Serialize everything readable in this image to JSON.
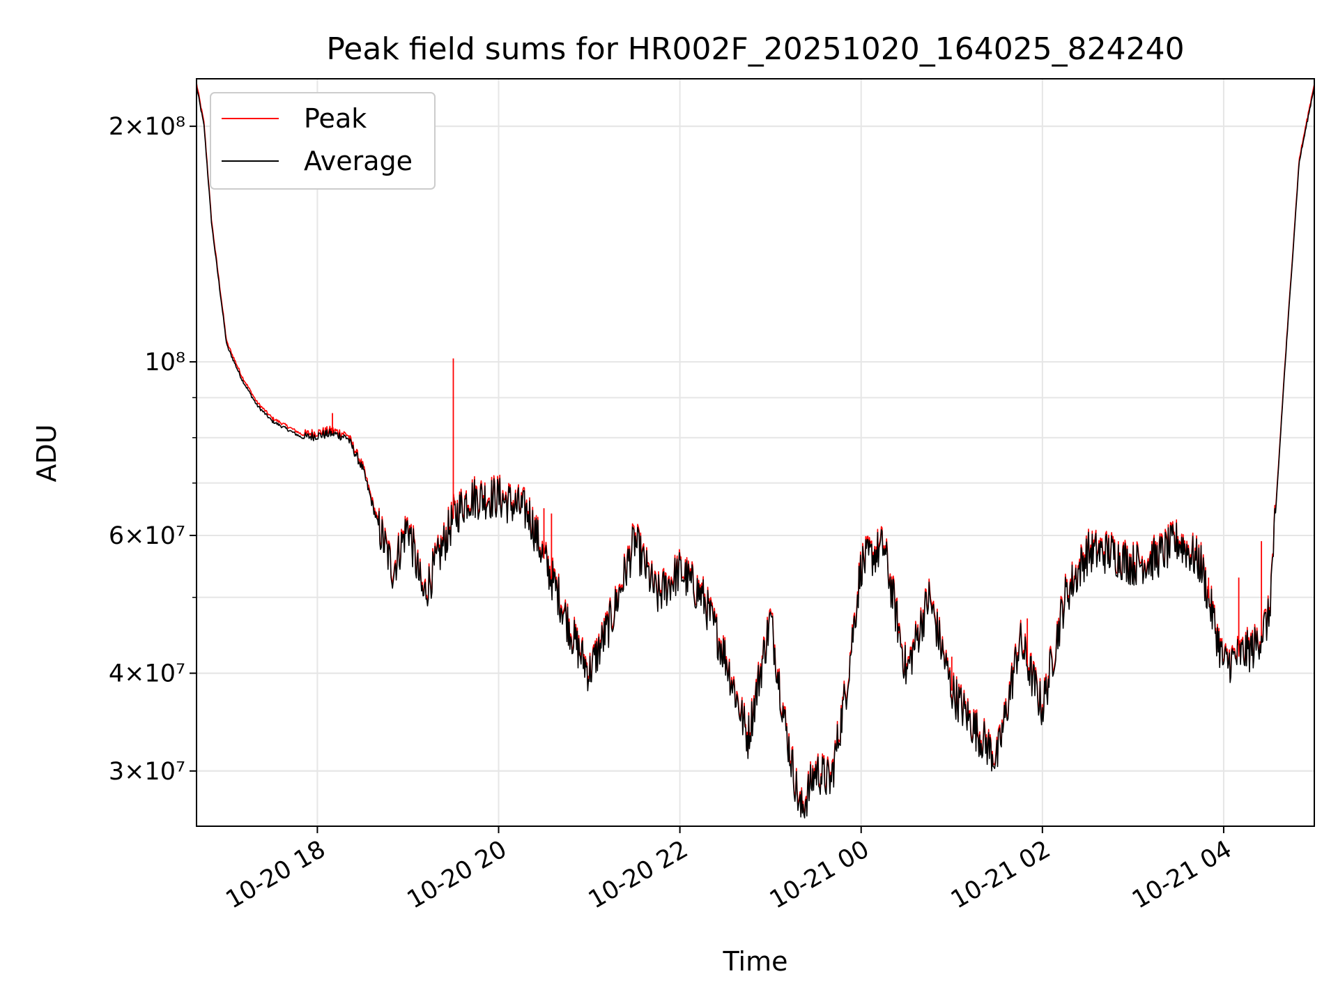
{
  "chart_data": {
    "type": "line",
    "title": "Peak field sums for HR002F_20251020_164025_824240",
    "xlabel": "Time",
    "ylabel": "ADU",
    "yscale": "log",
    "grid": true,
    "legend_position": "top-left",
    "xlim": [
      "2025-10-20 16:40",
      "2025-10-21 05:00"
    ],
    "ylim": [
      25500000,
      230000000
    ],
    "x_ticks": [
      "10-20 18",
      "10-20 20",
      "10-20 22",
      "10-21 00",
      "10-21 02",
      "10-21 04"
    ],
    "y_ticks": [
      {
        "value": 30000000,
        "label": "3×10⁷"
      },
      {
        "value": 40000000,
        "label": "4×10⁷"
      },
      {
        "value": 60000000,
        "label": "6×10⁷"
      },
      {
        "value": 100000000,
        "label": "10⁸"
      },
      {
        "value": 200000000,
        "label": "2×10⁸"
      }
    ],
    "series_colors": {
      "peak": "#ff0000",
      "average": "#000000"
    },
    "series": [
      {
        "name": "Peak",
        "color": "#ff0000",
        "x": [
          "2025-10-20 18:10",
          "2025-10-20 19:30",
          "2025-10-20 20:30",
          "2025-10-20 20:35",
          "2025-10-21 00:25",
          "2025-10-21 01:00",
          "2025-10-21 01:50",
          "2025-10-21 03:50",
          "2025-10-21 04:10",
          "2025-10-21 04:25"
        ],
        "values": [
          86000000,
          101000000,
          65000000,
          64000000,
          45000000,
          42000000,
          47000000,
          53000000,
          53000000,
          59000000
        ]
      },
      {
        "name": "Average",
        "color": "#000000",
        "x": [
          "2025-10-20 16:40",
          "2025-10-20 16:45",
          "2025-10-20 16:50",
          "2025-10-20 17:00",
          "2025-10-20 17:10",
          "2025-10-20 17:20",
          "2025-10-20 17:30",
          "2025-10-20 17:40",
          "2025-10-20 17:50",
          "2025-10-20 18:00",
          "2025-10-20 18:10",
          "2025-10-20 18:20",
          "2025-10-20 18:30",
          "2025-10-20 18:40",
          "2025-10-20 18:50",
          "2025-10-20 19:00",
          "2025-10-20 19:10",
          "2025-10-20 19:20",
          "2025-10-20 19:30",
          "2025-10-20 19:40",
          "2025-10-20 20:00",
          "2025-10-20 20:20",
          "2025-10-20 20:30",
          "2025-10-20 20:40",
          "2025-10-20 20:50",
          "2025-10-20 21:00",
          "2025-10-20 21:15",
          "2025-10-20 21:30",
          "2025-10-20 21:45",
          "2025-10-20 22:00",
          "2025-10-20 22:15",
          "2025-10-20 22:30",
          "2025-10-20 22:45",
          "2025-10-20 23:00",
          "2025-10-20 23:10",
          "2025-10-20 23:20",
          "2025-10-20 23:30",
          "2025-10-20 23:40",
          "2025-10-20 23:50",
          "2025-10-21 00:00",
          "2025-10-21 00:15",
          "2025-10-21 00:30",
          "2025-10-21 00:45",
          "2025-10-21 01:00",
          "2025-10-21 01:15",
          "2025-10-21 01:30",
          "2025-10-21 01:45",
          "2025-10-21 02:00",
          "2025-10-21 02:15",
          "2025-10-21 02:30",
          "2025-10-21 02:45",
          "2025-10-21 03:00",
          "2025-10-21 03:15",
          "2025-10-21 03:30",
          "2025-10-21 03:45",
          "2025-10-21 04:00",
          "2025-10-21 04:10",
          "2025-10-21 04:20",
          "2025-10-21 04:30",
          "2025-10-21 04:40",
          "2025-10-21 04:50",
          "2025-10-21 05:00"
        ],
        "values": [
          225000000,
          200000000,
          150000000,
          105000000,
          95000000,
          88000000,
          84000000,
          82000000,
          80000000,
          80500000,
          81000000,
          80000000,
          73000000,
          62000000,
          54000000,
          62000000,
          50000000,
          56000000,
          63000000,
          67000000,
          67000000,
          64000000,
          56000000,
          50000000,
          44000000,
          40000000,
          47000000,
          59000000,
          50000000,
          54000000,
          50000000,
          42000000,
          33000000,
          47000000,
          34000000,
          26500000,
          30000000,
          29000000,
          38000000,
          55000000,
          58000000,
          40000000,
          50000000,
          38000000,
          34000000,
          31000000,
          44000000,
          36000000,
          50000000,
          57000000,
          57000000,
          55000000,
          56000000,
          59000000,
          55000000,
          41000000,
          42000000,
          43000000,
          47000000,
          95000000,
          180000000,
          225000000
        ]
      }
    ]
  }
}
